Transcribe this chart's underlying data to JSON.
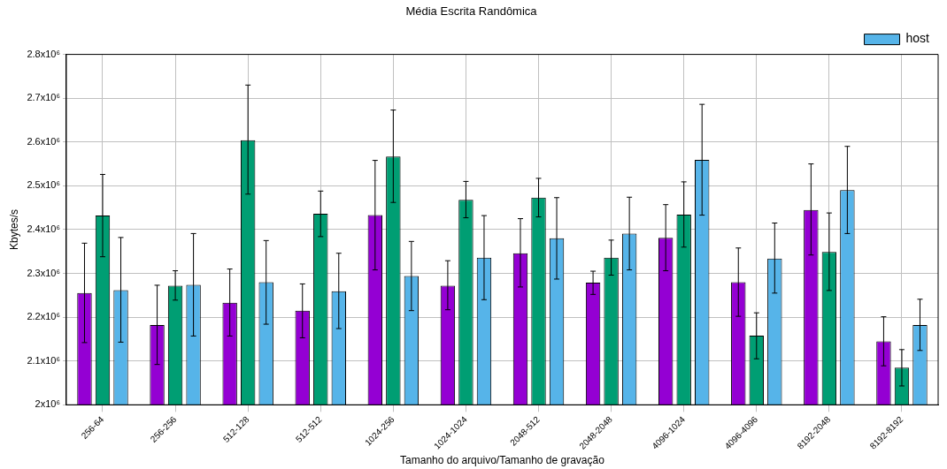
{
  "chart_data": {
    "type": "bar",
    "title": "Média Escrita Randômica",
    "xlabel": "Tamanho do arquivo/Tamanho de gravação",
    "ylabel": "Kbytes/s",
    "categories": [
      "256-64",
      "256-256",
      "512-128",
      "512-512",
      "1024-256",
      "1024-1024",
      "2048-512",
      "2048-2048",
      "4096-1024",
      "4096-4096",
      "8192-2048",
      "8192-8192"
    ],
    "series": [
      {
        "color": "#9400d3",
        "values": [
          2255000,
          2182000,
          2233000,
          2215000,
          2433000,
          2272000,
          2346000,
          2279000,
          2381000,
          2280000,
          2445000,
          2145000
        ],
        "errors": [
          [
            2142000,
            2369000
          ],
          [
            2092000,
            2273000
          ],
          [
            2157000,
            2310000
          ],
          [
            2153000,
            2276000
          ],
          [
            2308000,
            2558000
          ],
          [
            2217000,
            2329000
          ],
          [
            2269000,
            2425000
          ],
          [
            2252000,
            2305000
          ],
          [
            2306000,
            2457000
          ],
          [
            2202000,
            2358000
          ],
          [
            2342000,
            2550000
          ],
          [
            2089000,
            2201000
          ]
        ]
      },
      {
        "color": "#009e73",
        "values": [
          2432000,
          2272000,
          2604000,
          2436000,
          2567000,
          2468000,
          2473000,
          2336000,
          2434000,
          2158000,
          2349000,
          2085000
        ],
        "errors": [
          [
            2338000,
            2526000
          ],
          [
            2239000,
            2306000
          ],
          [
            2481000,
            2730000
          ],
          [
            2384000,
            2488000
          ],
          [
            2462000,
            2673000
          ],
          [
            2427000,
            2510000
          ],
          [
            2429000,
            2517000
          ],
          [
            2296000,
            2376000
          ],
          [
            2360000,
            2509000
          ],
          [
            2105000,
            2210000
          ],
          [
            2261000,
            2438000
          ],
          [
            2043000,
            2126000
          ]
        ]
      },
      {
        "name": "host",
        "color": "#56b4e9",
        "values": [
          2262000,
          2274000,
          2280000,
          2259000,
          2294000,
          2336000,
          2380000,
          2391000,
          2559000,
          2334000,
          2490000,
          2182000
        ],
        "errors": [
          [
            2143000,
            2382000
          ],
          [
            2157000,
            2391000
          ],
          [
            2184000,
            2375000
          ],
          [
            2174000,
            2346000
          ],
          [
            2215000,
            2373000
          ],
          [
            2240000,
            2432000
          ],
          [
            2287000,
            2473000
          ],
          [
            2308000,
            2474000
          ],
          [
            2433000,
            2686000
          ],
          [
            2255000,
            2415000
          ],
          [
            2391000,
            2590000
          ],
          [
            2124000,
            2241000
          ]
        ]
      }
    ],
    "ylim": [
      2000000,
      2800000
    ],
    "yticks": [
      {
        "value": 2000000,
        "label": "2x10⁶"
      },
      {
        "value": 2100000,
        "label": "2.1x10⁶"
      },
      {
        "value": 2200000,
        "label": "2.2x10⁶"
      },
      {
        "value": 2300000,
        "label": "2.3x10⁶"
      },
      {
        "value": 2400000,
        "label": "2.4x10⁶"
      },
      {
        "value": 2500000,
        "label": "2.5x10⁶"
      },
      {
        "value": 2600000,
        "label": "2.6x10⁶"
      },
      {
        "value": 2700000,
        "label": "2.7x10⁶"
      },
      {
        "value": 2800000,
        "label": "2.8x10⁶"
      }
    ],
    "grid": true,
    "legend": "top right"
  }
}
